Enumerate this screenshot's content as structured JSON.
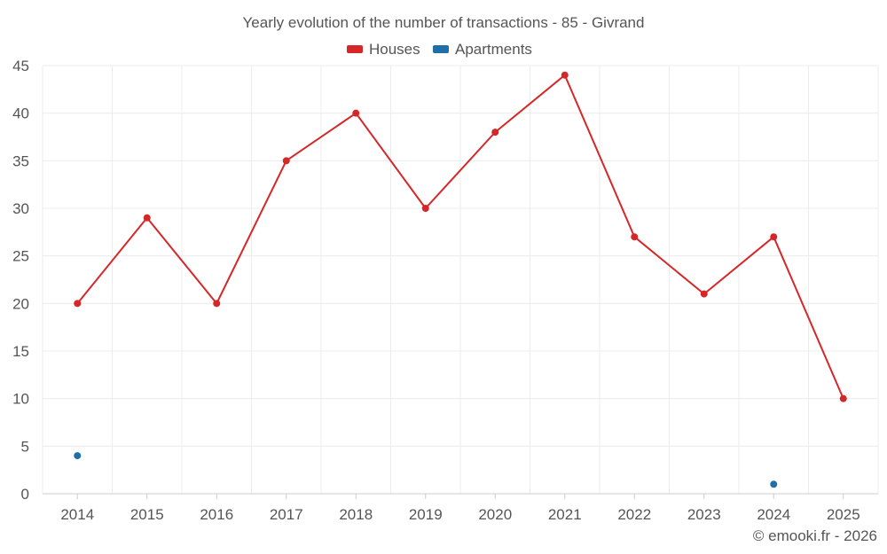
{
  "chart_data": {
    "type": "line",
    "title": "Yearly evolution of the number of transactions - 85 - Givrand",
    "categories": [
      "2014",
      "2015",
      "2016",
      "2017",
      "2018",
      "2019",
      "2020",
      "2021",
      "2022",
      "2023",
      "2024",
      "2025"
    ],
    "series": [
      {
        "name": "Houses",
        "color": "#d62728",
        "values": [
          20,
          29,
          20,
          35,
          40,
          30,
          38,
          44,
          27,
          21,
          27,
          10
        ]
      },
      {
        "name": "Apartments",
        "color": "#1f6fa8",
        "values": [
          4,
          null,
          null,
          null,
          null,
          null,
          null,
          null,
          null,
          null,
          1,
          null
        ]
      }
    ],
    "ylim": [
      0,
      45
    ],
    "yticks": [
      0,
      5,
      10,
      15,
      20,
      25,
      30,
      35,
      40,
      45
    ],
    "xlabel": "",
    "ylabel": "",
    "grid": true,
    "legend_position": "top-center"
  },
  "credit": "© emooki.fr - 2026"
}
